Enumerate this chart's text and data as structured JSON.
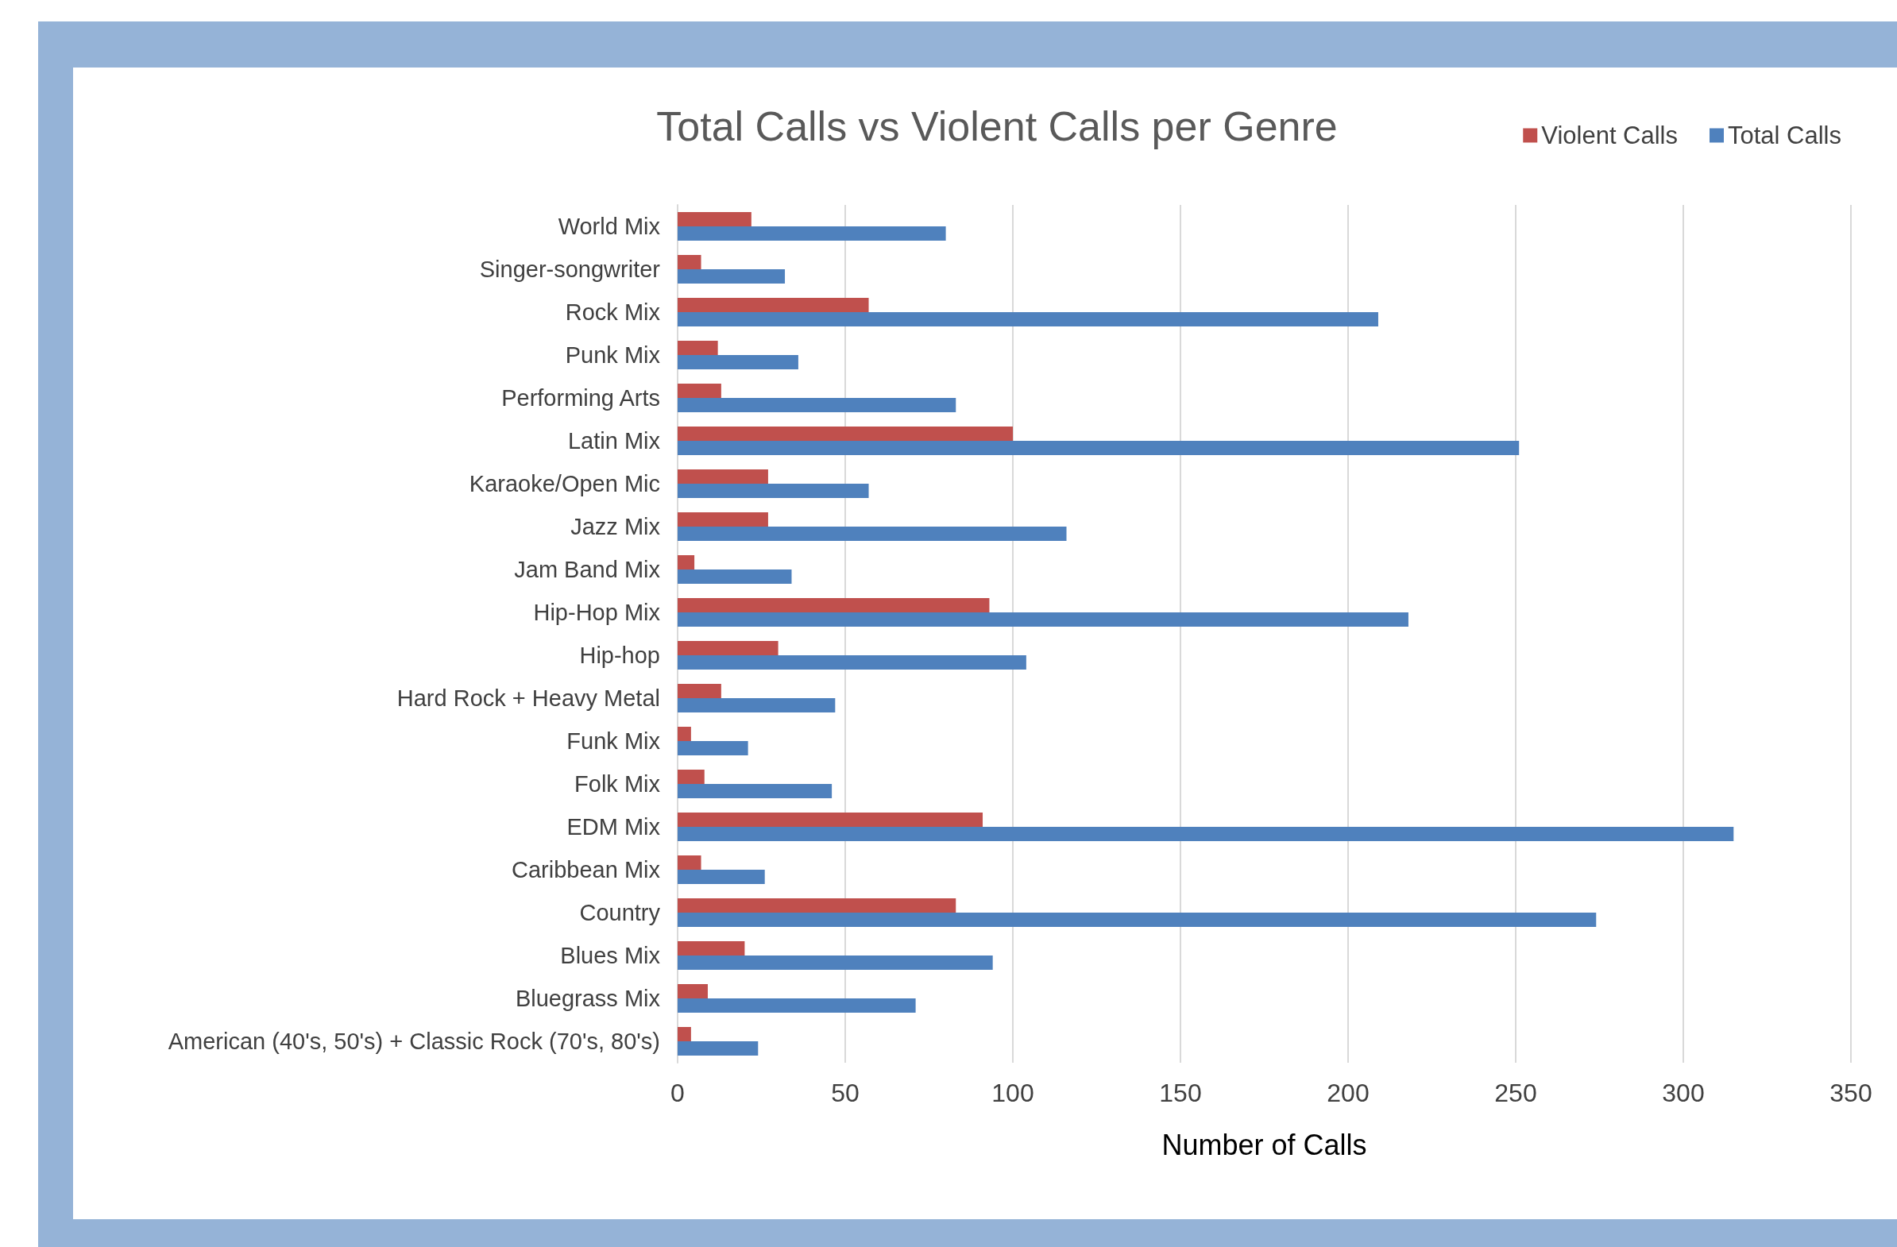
{
  "chart_data": {
    "type": "bar",
    "orientation": "horizontal",
    "title": "Total Calls vs Violent Calls per Genre",
    "xlabel": "Number of Calls",
    "categories": [
      "World Mix",
      "Singer-songwriter",
      "Rock Mix",
      "Punk Mix",
      "Performing Arts",
      "Latin Mix",
      "Karaoke/Open Mic",
      "Jazz Mix",
      "Jam Band Mix",
      "Hip-Hop Mix",
      "Hip-hop",
      "Hard Rock + Heavy Metal",
      "Funk Mix",
      "Folk Mix",
      "EDM Mix",
      "Caribbean Mix",
      "Country",
      "Blues Mix",
      "Bluegrass Mix",
      "American (40's, 50's) + Classic Rock (70's, 80's)"
    ],
    "series": [
      {
        "name": "Violent Calls",
        "color": "#c0504d",
        "values": [
          22,
          7,
          57,
          12,
          13,
          100,
          27,
          27,
          5,
          93,
          30,
          13,
          4,
          8,
          91,
          7,
          83,
          20,
          9,
          4
        ]
      },
      {
        "name": "Total Calls",
        "color": "#4f81bd",
        "values": [
          80,
          32,
          209,
          36,
          83,
          251,
          57,
          116,
          34,
          218,
          104,
          47,
          21,
          46,
          315,
          26,
          274,
          94,
          71,
          24
        ]
      }
    ],
    "xlim": [
      0,
      350
    ],
    "xticks": [
      0,
      50,
      100,
      150,
      200,
      250,
      300,
      350
    ],
    "grid": "x",
    "legend": "top right"
  }
}
